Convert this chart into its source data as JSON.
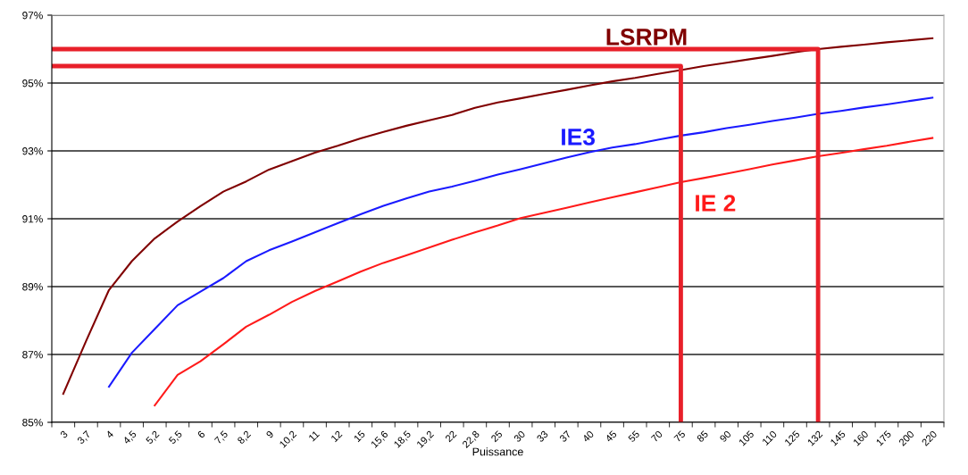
{
  "chart_data": {
    "type": "line",
    "xlabel": "Puissance",
    "categories": [
      "3",
      "3,7",
      "4",
      "4,5",
      "5,2",
      "5,5",
      "6",
      "7,5",
      "8,2",
      "9",
      "10,2",
      "11",
      "12",
      "15",
      "15,6",
      "18,5",
      "19,2",
      "22",
      "22,8",
      "25",
      "30",
      "33",
      "37",
      "40",
      "45",
      "55",
      "70",
      "75",
      "85",
      "90",
      "105",
      "110",
      "125",
      "132",
      "145",
      "160",
      "175",
      "200",
      "220"
    ],
    "series": [
      {
        "name": "LSRPM",
        "color": "#800000",
        "values": [
          85.84,
          87.4,
          88.9,
          89.75,
          90.42,
          90.92,
          91.37,
          91.8,
          92.1,
          92.45,
          92.7,
          92.95,
          93.15,
          93.37,
          93.56,
          93.74,
          93.9,
          94.06,
          94.27,
          94.43,
          94.55,
          94.68,
          94.8,
          94.93,
          95.05,
          95.15,
          95.27,
          95.38,
          95.5,
          95.6,
          95.7,
          95.8,
          95.91,
          96.0,
          96.07,
          96.13,
          96.2,
          96.26,
          96.32
        ]
      },
      {
        "name": "IE3",
        "color": "#1a1aff",
        "values": [
          null,
          null,
          86.05,
          87.05,
          87.75,
          88.45,
          88.85,
          89.25,
          89.75,
          90.07,
          90.33,
          90.6,
          90.87,
          91.13,
          91.38,
          91.6,
          91.8,
          91.95,
          92.12,
          92.3,
          92.46,
          92.63,
          92.8,
          92.96,
          93.1,
          93.2,
          93.33,
          93.45,
          93.55,
          93.67,
          93.77,
          93.88,
          93.98,
          94.09,
          94.18,
          94.28,
          94.37,
          94.47,
          94.57
        ]
      },
      {
        "name": "IE 2",
        "color": "#ff1a1a",
        "values": [
          null,
          null,
          null,
          null,
          85.5,
          86.4,
          86.8,
          87.3,
          87.82,
          88.17,
          88.55,
          88.87,
          89.15,
          89.44,
          89.7,
          89.92,
          90.15,
          90.38,
          90.6,
          90.8,
          91.02,
          91.17,
          91.32,
          91.48,
          91.63,
          91.78,
          91.93,
          92.08,
          92.2,
          92.33,
          92.46,
          92.6,
          92.72,
          92.84,
          92.94,
          93.05,
          93.15,
          93.27,
          93.38
        ]
      }
    ],
    "ylim": [
      85,
      97
    ],
    "yticks": [
      {
        "value": 85,
        "label": "85%"
      },
      {
        "value": 87,
        "label": "87%"
      },
      {
        "value": 89,
        "label": "89%"
      },
      {
        "value": 91,
        "label": "91%"
      },
      {
        "value": 93,
        "label": "93%"
      },
      {
        "value": 95,
        "label": "95%"
      },
      {
        "value": 97,
        "label": "97%"
      }
    ],
    "grid": "y",
    "legend": false,
    "marker": "none",
    "line_style": "solid",
    "ref_lines": [
      {
        "axis": "y",
        "value": 96.0,
        "color": "#e8202a"
      },
      {
        "axis": "x",
        "value": "132",
        "color": "#e8202a"
      },
      {
        "axis": "y",
        "value": 95.5,
        "color": "#e8202a"
      },
      {
        "axis": "x",
        "value": "75",
        "color": "#e8202a"
      }
    ]
  }
}
